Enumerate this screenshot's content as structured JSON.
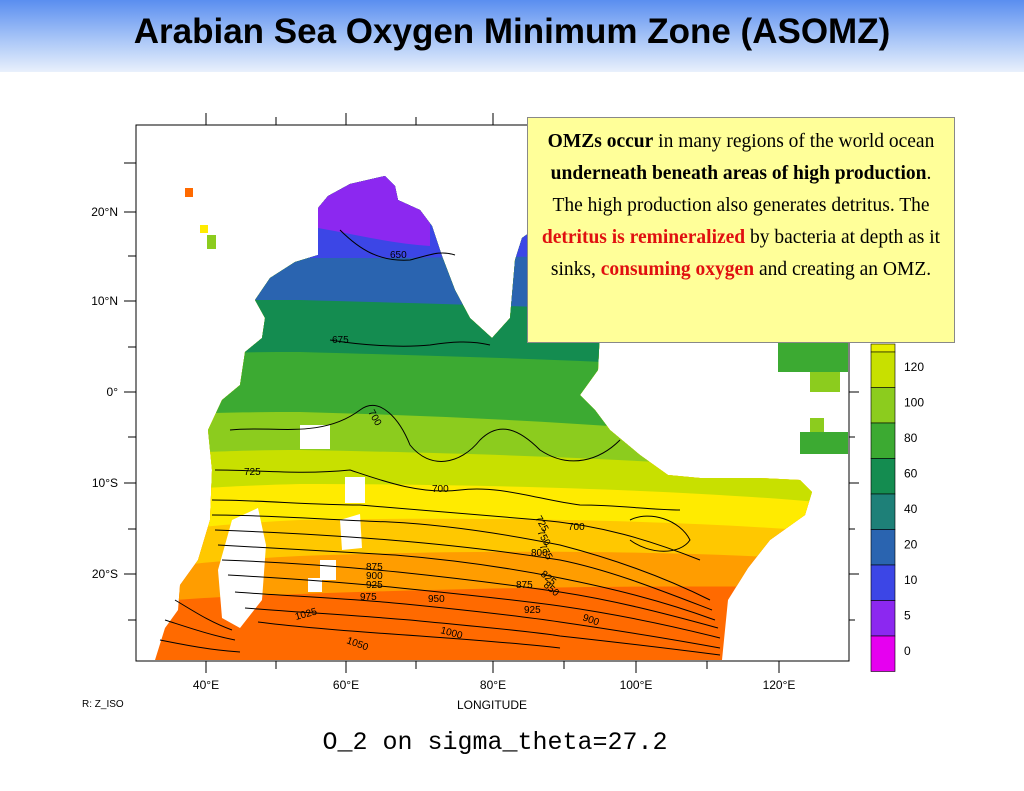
{
  "slide": {
    "title": "Arabian Sea Oxygen Minimum Zone (ASOMZ)"
  },
  "callout": {
    "p1_bold": "OMZs occur",
    "p2": " in many regions of the world ocean ",
    "p3_bold": "underneath beneath areas of high production",
    "p4": ".  The high production also generates detritus.  The ",
    "p5_red": "detritus is remineralized",
    "p6": " by bacteria at depth as it sinks, ",
    "p7_red": "consuming oxygen",
    "p8": " and creating an OMZ."
  },
  "map": {
    "xlabel": "LONGITUDE",
    "lon_ticks": [
      "40°E",
      "60°E",
      "80°E",
      "100°E",
      "120°E"
    ],
    "lat_ticks": [
      "20°N",
      "10°N",
      "0°",
      "10°S",
      "20°S"
    ],
    "contour_labels": [
      "650",
      "675",
      "700",
      "725",
      "700",
      "725",
      "750",
      "775",
      "800",
      "825",
      "850",
      "700",
      "875",
      "900",
      "925",
      "875",
      "975",
      "950",
      "925",
      "900",
      "1025",
      "1000",
      "1050"
    ],
    "colorbar_values": [
      "120",
      "100",
      "80",
      "60",
      "40",
      "20",
      "10",
      "5",
      "0"
    ],
    "colorbar_colors": [
      "#c8e000",
      "#8ccc1e",
      "#3caa32",
      "#148c50",
      "#1e8078",
      "#2a64b0",
      "#3c46e6",
      "#8c28f0",
      "#e600f0"
    ],
    "corner_label": "R: Z_ISO",
    "caption": "O_2 on sigma_theta=27.2"
  }
}
